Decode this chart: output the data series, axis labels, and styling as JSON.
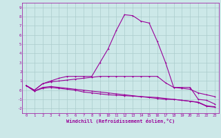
{
  "x": [
    0,
    1,
    2,
    3,
    4,
    5,
    6,
    7,
    8,
    9,
    10,
    11,
    12,
    13,
    14,
    15,
    16,
    17,
    18,
    19,
    20,
    21,
    22,
    23
  ],
  "line1": [
    0.5,
    0.0,
    0.7,
    1.0,
    1.3,
    1.5,
    1.5,
    1.5,
    1.5,
    3.0,
    4.5,
    6.5,
    8.2,
    8.1,
    7.5,
    7.3,
    5.3,
    3.0,
    0.3,
    0.3,
    0.3,
    -1.0,
    -1.1,
    -1.5
  ],
  "line2": [
    0.5,
    0.0,
    0.7,
    0.9,
    1.0,
    1.1,
    1.2,
    1.3,
    1.4,
    1.5,
    1.5,
    1.5,
    1.5,
    1.5,
    1.5,
    1.5,
    1.5,
    0.8,
    0.3,
    0.2,
    0.1,
    -0.3,
    -0.5,
    -0.7
  ],
  "line3": [
    0.5,
    -0.1,
    0.3,
    0.4,
    0.3,
    0.2,
    0.1,
    0.0,
    -0.1,
    -0.2,
    -0.3,
    -0.4,
    -0.5,
    -0.6,
    -0.7,
    -0.8,
    -0.9,
    -1.0,
    -1.0,
    -1.1,
    -1.2,
    -1.3,
    -1.7,
    -1.8
  ],
  "line4": [
    0.5,
    -0.1,
    0.2,
    0.3,
    0.2,
    0.1,
    0.0,
    -0.2,
    -0.3,
    -0.4,
    -0.5,
    -0.55,
    -0.6,
    -0.65,
    -0.7,
    -0.75,
    -0.8,
    -0.9,
    -1.0,
    -1.1,
    -1.2,
    -1.35,
    -1.75,
    -1.85
  ],
  "xlabel": "Windchill (Refroidissement éolien,°C)",
  "bg_color": "#cce8e8",
  "grid_color": "#aacccc",
  "line_color": "#990099",
  "ylim": [
    -2.5,
    9.5
  ],
  "xlim": [
    -0.5,
    23.5
  ],
  "yticks": [
    -2,
    -1,
    0,
    1,
    2,
    3,
    4,
    5,
    6,
    7,
    8,
    9
  ],
  "xticks": [
    0,
    1,
    2,
    3,
    4,
    5,
    6,
    7,
    8,
    9,
    10,
    11,
    12,
    13,
    14,
    15,
    16,
    17,
    18,
    19,
    20,
    21,
    22,
    23
  ],
  "tick_fontsize": 4.0,
  "xlabel_fontsize": 5.0
}
